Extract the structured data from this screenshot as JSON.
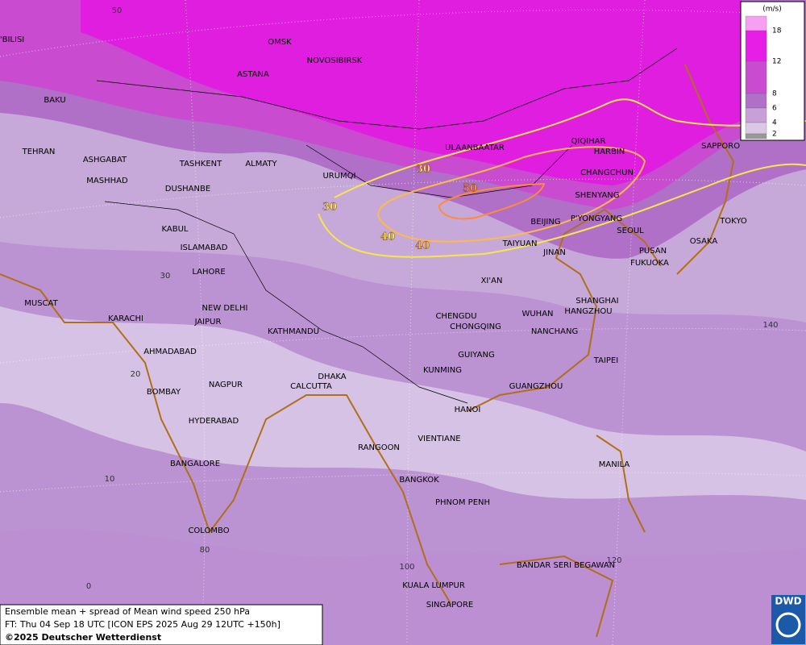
{
  "map": {
    "cities": [
      "T'BILISI",
      "OMSK",
      "NOVOSIBIRSK",
      "ASTANA",
      "BAKU",
      "TEHRAN",
      "ASHGABAT",
      "MASHHAD",
      "TASHKENT",
      "ALMATY",
      "DUSHANBE",
      "URUMQI",
      "ULAANBAATAR",
      "QIQIHAR",
      "HARBIN",
      "CHANGCHUN",
      "SHENYANG",
      "SAPPORO",
      "BEIJING",
      "P'YONGYANG",
      "SEOUL",
      "TOKYO",
      "OSAKA",
      "PUSAN",
      "FUKUOKA",
      "TAIYUAN",
      "JINAN",
      "KABUL",
      "ISLAMABAD",
      "LAHORE",
      "XI'AN",
      "SHANGHAI",
      "HANGZHOU",
      "MUSCAT",
      "KARACHI",
      "NEW DELHI",
      "JAIPUR",
      "KATHMANDU",
      "CHENGDU",
      "CHONGQING",
      "WUHAN",
      "NANCHANG",
      "AHMADABAD",
      "GUIYANG",
      "TAIPEI",
      "DHAKA",
      "KUNMING",
      "CALCUTTA",
      "NAGPUR",
      "GUANGZHOU",
      "BOMBAY",
      "HANOI",
      "HYDERABAD",
      "RANGOON",
      "VIENTIANE",
      "BANGALORE",
      "MANILA",
      "BANGKOK",
      "PHNOM PENH",
      "COLOMBO",
      "BANDAR SERI BEGAWAN",
      "KUALA LUMPUR",
      "SINGAPORE"
    ],
    "graticule_labels": [
      50,
      30,
      20,
      10,
      80,
      0,
      100,
      120,
      140
    ],
    "contour_labels": [
      30,
      30,
      40,
      40,
      50
    ]
  },
  "legend": {
    "unit": "(m/s)",
    "levels": [
      18,
      12,
      8,
      6,
      4,
      2
    ]
  },
  "caption": [
    "Ensemble mean + spread of Mean wind speed 250 hPa",
    "FT: Thu 04 Sep 18 UTC [ICON EPS 2025 Aug 29 12UTC +150h]",
    "©2025 Deutscher Wetterdienst"
  ],
  "logo": "DWD"
}
